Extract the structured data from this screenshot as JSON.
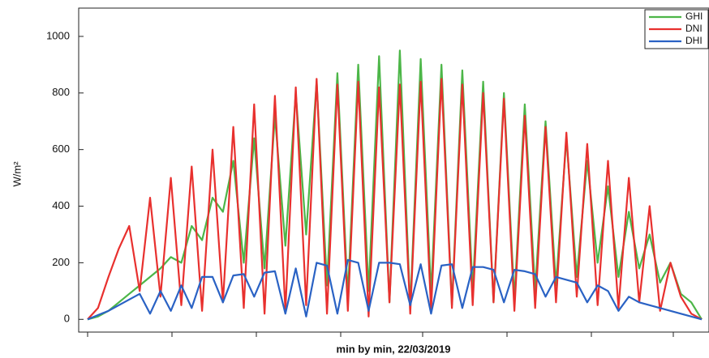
{
  "chart_data": {
    "type": "line",
    "x_label": "min by min, 22/03/2019",
    "y_label": "W/m²",
    "categories": [
      null,
      null,
      null,
      null,
      null,
      null,
      null,
      null,
      null,
      null,
      null,
      null,
      null,
      null,
      null,
      null,
      null,
      null,
      null,
      null,
      null,
      null,
      null,
      null,
      null,
      null,
      null,
      null,
      null,
      null,
      null,
      null,
      null,
      null,
      null,
      null,
      null,
      null,
      null,
      null,
      null,
      null,
      null,
      null,
      null,
      null,
      null,
      null,
      null,
      null,
      null,
      null,
      null,
      null,
      null,
      null,
      null,
      null,
      null,
      null
    ],
    "ylim": [
      -45,
      1100
    ],
    "yticks": [
      0,
      200,
      400,
      600,
      800,
      1000
    ],
    "legend": "top-right",
    "series": [
      {
        "name": "GHI",
        "color": "#4cb648",
        "values": [
          0,
          10,
          30,
          60,
          90,
          120,
          150,
          180,
          220,
          200,
          330,
          280,
          430,
          380,
          560,
          200,
          640,
          180,
          720,
          260,
          800,
          300,
          840,
          120,
          870,
          80,
          900,
          100,
          930,
          60,
          950,
          40,
          920,
          90,
          900,
          50,
          880,
          100,
          840,
          60,
          800,
          70,
          760,
          100,
          700,
          120,
          640,
          150,
          560,
          200,
          470,
          150,
          380,
          180,
          300,
          130,
          200,
          90,
          60,
          0
        ]
      },
      {
        "name": "DNI",
        "color": "#e8302e",
        "values": [
          0,
          40,
          150,
          250,
          330,
          100,
          430,
          80,
          500,
          50,
          540,
          30,
          600,
          60,
          680,
          40,
          760,
          20,
          790,
          30,
          820,
          50,
          850,
          20,
          830,
          30,
          840,
          10,
          820,
          60,
          830,
          20,
          840,
          30,
          850,
          40,
          830,
          50,
          800,
          60,
          780,
          30,
          720,
          40,
          680,
          60,
          660,
          80,
          620,
          50,
          560,
          40,
          500,
          60,
          400,
          30,
          200,
          80,
          20,
          0
        ]
      },
      {
        "name": "DHI",
        "color": "#2a62c4",
        "values": [
          0,
          15,
          30,
          50,
          70,
          90,
          20,
          100,
          30,
          120,
          40,
          150,
          150,
          60,
          155,
          160,
          80,
          165,
          170,
          20,
          180,
          10,
          200,
          190,
          20,
          210,
          200,
          30,
          200,
          200,
          195,
          50,
          195,
          20,
          190,
          195,
          40,
          185,
          185,
          175,
          60,
          175,
          170,
          160,
          80,
          150,
          140,
          130,
          60,
          120,
          100,
          30,
          80,
          60,
          50,
          40,
          30,
          20,
          10,
          0
        ]
      }
    ]
  }
}
